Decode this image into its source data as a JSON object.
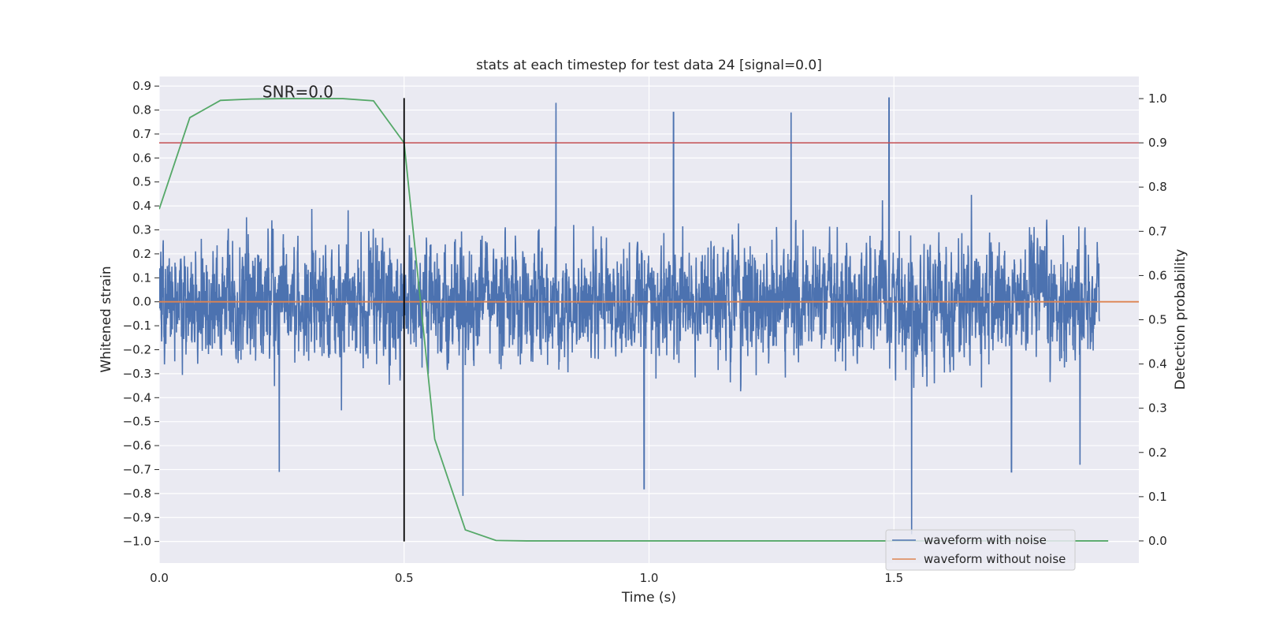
{
  "chart_data": {
    "type": "line",
    "title": "stats at each timestep for test data 24 [signal=0.0]",
    "xlabel": "Time (s)",
    "ylabel": "Whitened strain",
    "ylabel_right": "Detection probability",
    "xlim": [
      0.0,
      2.0
    ],
    "ylim": [
      -1.09,
      0.94
    ],
    "ylim_right": [
      -0.05,
      1.05
    ],
    "x_ticks": [
      0.0,
      0.5,
      1.0,
      1.5
    ],
    "x_tick_labels": [
      "0.0",
      "0.5",
      "1.0",
      "1.5"
    ],
    "y_ticks": [
      0.9,
      0.8,
      0.7,
      0.6,
      0.5,
      0.4,
      0.3,
      0.2,
      0.1,
      0.0,
      -0.1,
      -0.2,
      -0.3,
      -0.4,
      -0.5,
      -0.6,
      -0.7,
      -0.8,
      -0.9,
      -1.0
    ],
    "y_tick_labels": [
      "0.9",
      "0.8",
      "0.7",
      "0.6",
      "0.5",
      "0.4",
      "0.3",
      "0.2",
      "0.1",
      "0.0",
      "−0.1",
      "−0.2",
      "−0.3",
      "−0.4",
      "−0.5",
      "−0.6",
      "−0.7",
      "−0.8",
      "−0.9",
      "−1.0"
    ],
    "y_right_ticks": [
      1.0,
      0.9,
      0.8,
      0.7,
      0.6,
      0.5,
      0.4,
      0.3,
      0.2,
      0.1,
      0.0
    ],
    "y_right_tick_labels": [
      "1.0",
      "0.9",
      "0.8",
      "0.7",
      "0.6",
      "0.5",
      "0.4",
      "0.3",
      "0.2",
      "0.1",
      "0.0"
    ],
    "grid": true,
    "legend_position": "bottom-right",
    "annotation": {
      "text": "SNR=0.0",
      "x": 0.275,
      "y": 0.86
    },
    "vline": {
      "x": 0.5,
      "ymin": -1.0,
      "ymax": 0.85,
      "color": "#000000"
    },
    "hline_threshold": {
      "y_right": 0.9,
      "color": "#c44e52"
    },
    "series": [
      {
        "name": "waveform with noise",
        "axis": "left",
        "color": "#4c72b0",
        "style": "noise",
        "sample_rate": 2048,
        "duration": 2.0,
        "amplitude_std": 0.2,
        "spikes": [
          {
            "x": 0.81,
            "y": 0.83
          },
          {
            "x": 1.05,
            "y": 0.79
          },
          {
            "x": 1.29,
            "y": 0.79
          },
          {
            "x": 1.49,
            "y": 0.85
          },
          {
            "x": 1.536,
            "y": -0.97
          },
          {
            "x": 0.99,
            "y": -0.78
          },
          {
            "x": 0.62,
            "y": -0.81
          },
          {
            "x": 0.245,
            "y": -0.71
          },
          {
            "x": 1.74,
            "y": -0.71
          },
          {
            "x": 1.88,
            "y": -0.68
          }
        ]
      },
      {
        "name": "waveform without noise",
        "axis": "left",
        "color": "#dd8452",
        "x": [
          0.0,
          2.0
        ],
        "y": [
          0.0,
          0.0
        ]
      },
      {
        "name": "",
        "axis": "right",
        "color": "#55a868",
        "x": [
          0.0,
          0.0625,
          0.125,
          0.1875,
          0.25,
          0.3125,
          0.375,
          0.4375,
          0.5,
          0.5625,
          0.625,
          0.6875,
          0.75,
          0.8125,
          0.875,
          0.9375,
          1.0,
          1.0625,
          1.125,
          1.1875,
          1.25,
          1.3125,
          1.375,
          1.4375,
          1.5,
          1.5625,
          1.625,
          1.6875,
          1.75,
          1.8125,
          1.875,
          1.9375
        ],
        "y": [
          0.75,
          0.957,
          0.996,
          0.999,
          1.0,
          1.0,
          1.0,
          0.995,
          0.9,
          0.23,
          0.025,
          0.001,
          0.0,
          0.0,
          0.0,
          0.0,
          0.0,
          0.0,
          0.0,
          0.0,
          0.0,
          0.0,
          0.0,
          0.0,
          0.0,
          0.0,
          0.0,
          0.0,
          0.0,
          0.0,
          0.0,
          0.0
        ]
      }
    ]
  },
  "colors": {
    "plot_background": "#eaeaf2",
    "grid": "#ffffff",
    "figure_background": "#ffffff",
    "text": "#262626"
  }
}
